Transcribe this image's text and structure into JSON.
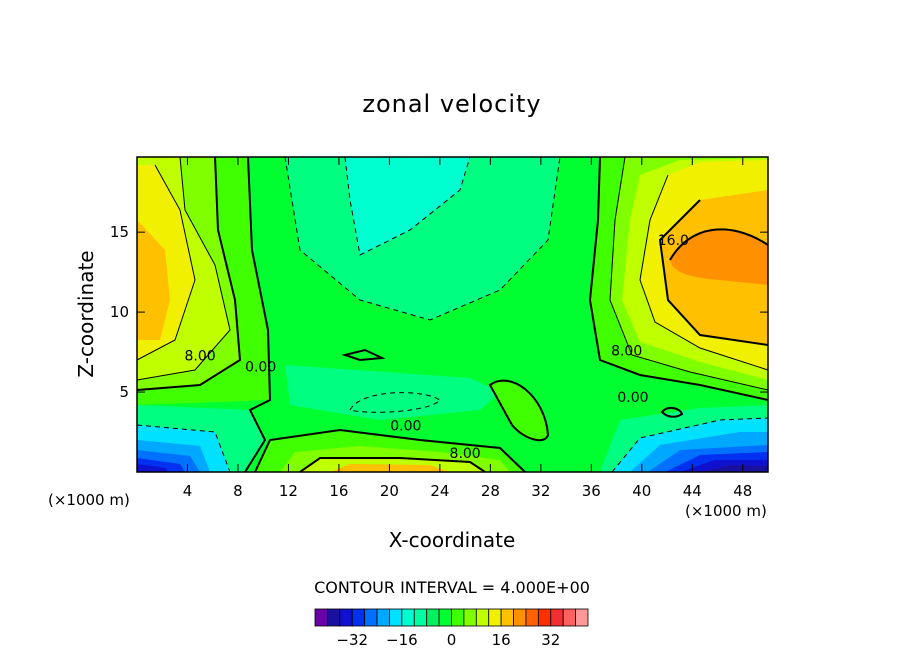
{
  "chart_data": {
    "type": "heatmap",
    "title": "zonal velocity",
    "xlabel": "X-coordinate",
    "ylabel": "Z-coordinate",
    "x_unit_label": "(×1000 m)",
    "xlim": [
      0,
      50
    ],
    "ylim": [
      0,
      19.7
    ],
    "x_ticks": [
      4,
      8,
      12,
      16,
      20,
      24,
      28,
      32,
      36,
      40,
      44,
      48
    ],
    "y_ticks": [
      5,
      10,
      15
    ],
    "contour_interval_text": "CONTOUR INTERVAL = 4.000E+00",
    "contour_labels": [
      {
        "text": "16.0",
        "x": 42.5,
        "z": 14.5
      },
      {
        "text": "8.00",
        "x": 5.0,
        "z": 7.3
      },
      {
        "text": "0.00",
        "x": 9.8,
        "z": 6.6
      },
      {
        "text": "8.00",
        "x": 38.8,
        "z": 7.6
      },
      {
        "text": "0.00",
        "x": 39.3,
        "z": 4.7
      },
      {
        "text": "0.00",
        "x": 21.3,
        "z": 2.9
      },
      {
        "text": "8.00",
        "x": 26.0,
        "z": 1.2
      }
    ],
    "colorbar": {
      "colors": [
        "#6a00a8",
        "#1a10a0",
        "#1010d0",
        "#0030f0",
        "#0070ff",
        "#00a8ff",
        "#00e0ff",
        "#00ffd0",
        "#00ffa0",
        "#00f060",
        "#00ff30",
        "#40ff00",
        "#80ff00",
        "#c0ff00",
        "#f0f000",
        "#ffc000",
        "#ff9000",
        "#ff6000",
        "#ff3000",
        "#f03030",
        "#ff6060",
        "#ff9898"
      ],
      "tick_labels": [
        "-32",
        "-16",
        "0",
        "16",
        "32"
      ],
      "tick_values": [
        -32,
        -16,
        0,
        16,
        32
      ],
      "vmin": -44,
      "vmax": 44
    }
  }
}
